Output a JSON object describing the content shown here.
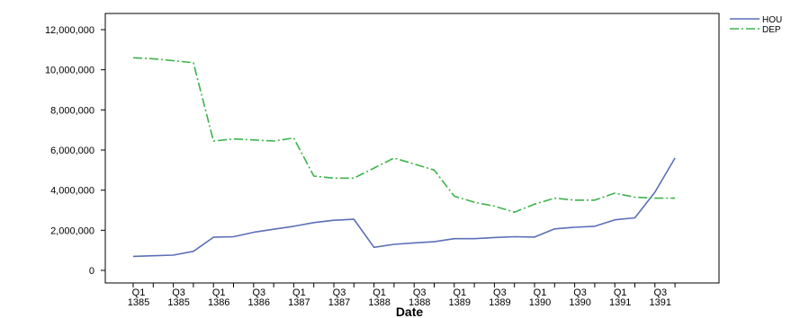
{
  "chart_data": {
    "type": "line",
    "title": "",
    "xlabel": "Date",
    "ylabel": "",
    "ylim": [
      0,
      12000000
    ],
    "yticks": [
      0,
      2000000,
      4000000,
      6000000,
      8000000,
      10000000,
      12000000
    ],
    "ytick_labels": [
      "0",
      "2,000,000",
      "4,000,000",
      "6,000,000",
      "8,000,000",
      "10,000,000",
      "12,000,000"
    ],
    "x_tick_labels": [
      {
        "q": "Q1",
        "y": "1385"
      },
      {
        "q": "Q3",
        "y": "1385"
      },
      {
        "q": "Q1",
        "y": "1386"
      },
      {
        "q": "Q3",
        "y": "1386"
      },
      {
        "q": "Q1",
        "y": "1387"
      },
      {
        "q": "Q3",
        "y": "1387"
      },
      {
        "q": "Q1",
        "y": "1388"
      },
      {
        "q": "Q3",
        "y": "1388"
      },
      {
        "q": "Q1",
        "y": "1389"
      },
      {
        "q": "Q3",
        "y": "1389"
      },
      {
        "q": "Q1",
        "y": "1390"
      },
      {
        "q": "Q3",
        "y": "1390"
      },
      {
        "q": "Q1",
        "y": "1391"
      },
      {
        "q": "Q3",
        "y": "1391"
      }
    ],
    "grid": false,
    "legend_position": "top-right",
    "series": [
      {
        "name": "HOU",
        "color": "#5b6fb8",
        "style": "solid",
        "values": [
          700000,
          730000,
          760000,
          950000,
          1650000,
          1680000,
          1900000,
          2050000,
          2200000,
          2380000,
          2500000,
          2550000,
          1150000,
          1300000,
          1370000,
          1430000,
          1580000,
          1580000,
          1640000,
          1680000,
          1660000,
          2070000,
          2150000,
          2200000,
          2520000,
          2620000,
          3900000,
          5600000
        ]
      },
      {
        "name": "DEP",
        "color": "#3cb44b",
        "style": "dashdot",
        "values": [
          10600000,
          10550000,
          10450000,
          10350000,
          6450000,
          6550000,
          6500000,
          6450000,
          6600000,
          4700000,
          4600000,
          4600000,
          5100000,
          5600000,
          5300000,
          5000000,
          3700000,
          3400000,
          3200000,
          2900000,
          3300000,
          3600000,
          3500000,
          3500000,
          3850000,
          3650000,
          3600000,
          3600000
        ]
      }
    ]
  }
}
